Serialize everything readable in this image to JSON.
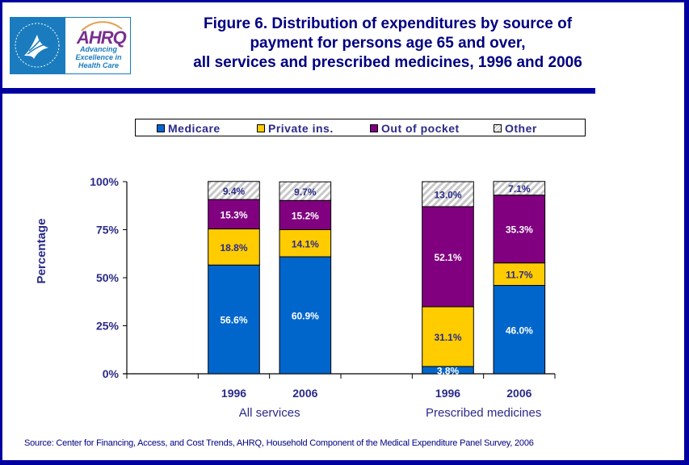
{
  "header": {
    "logo": {
      "hhs_seal": "hhs-eagle-seal",
      "brand": "AHRQ",
      "tagline": "Advancing Excellence in Health Care"
    },
    "title": "Figure 6. Distribution of expenditures by source of\npayment for persons age 65 and over,\nall services and prescribed medicines, 1996 and 2006"
  },
  "colors": {
    "frame": "#0000a0",
    "text": "#2a2a8a",
    "medicare": "#0066cc",
    "private": "#ffcc00",
    "out_of_pocket": "#800080",
    "other": "#d8d8d8"
  },
  "chart_data": {
    "type": "bar",
    "stacked": true,
    "title": "Figure 6. Distribution of expenditures by source of payment for persons age 65 and over, all services and prescribed medicines, 1996 and 2006",
    "ylabel": "Percentage",
    "xlabel": "",
    "ylim": [
      0,
      100
    ],
    "yticks": [
      "0%",
      "25%",
      "50%",
      "75%",
      "100%"
    ],
    "ytick_values": [
      0,
      25,
      50,
      75,
      100
    ],
    "legend_position": "top",
    "groups": [
      {
        "label": "All services",
        "categories": [
          "1996",
          "2006"
        ]
      },
      {
        "label": "Prescribed medicines",
        "categories": [
          "1996",
          "2006"
        ]
      }
    ],
    "categories": [
      "All services 1996",
      "All services 2006",
      "Prescribed medicines 1996",
      "Prescribed medicines 2006"
    ],
    "series": [
      {
        "name": "Medicare",
        "key": "medicare",
        "values": [
          56.6,
          60.9,
          3.8,
          46.0
        ],
        "labels": [
          "56.6%",
          "60.9%",
          "3.8%",
          "46.0%"
        ]
      },
      {
        "name": "Private ins.",
        "key": "private",
        "values": [
          18.8,
          14.1,
          31.1,
          11.7
        ],
        "labels": [
          "18.8%",
          "14.1%",
          "31.1%",
          "11.7%"
        ]
      },
      {
        "name": "Out of pocket",
        "key": "out_of_pocket",
        "values": [
          15.3,
          15.2,
          52.1,
          35.3
        ],
        "labels": [
          "15.3%",
          "15.2%",
          "52.1%",
          "35.3%"
        ]
      },
      {
        "name": "Other",
        "key": "other",
        "values": [
          9.4,
          9.7,
          13.0,
          7.1
        ],
        "labels": [
          "9.4%",
          "9.7%",
          "13.0%",
          "7.1%"
        ]
      }
    ]
  },
  "legend": {
    "items": [
      {
        "label": "Medicare",
        "icon": "medicare-swatch"
      },
      {
        "label": "Private ins.",
        "icon": "private-swatch"
      },
      {
        "label": "Out of pocket",
        "icon": "out-of-pocket-swatch"
      },
      {
        "label": "Other",
        "icon": "other-hatched-swatch"
      }
    ]
  },
  "footer": {
    "source": "Source: Center for Financing, Access, and Cost Trends, AHRQ, Household Component of the Medical Expenditure Panel Survey, 2006"
  }
}
